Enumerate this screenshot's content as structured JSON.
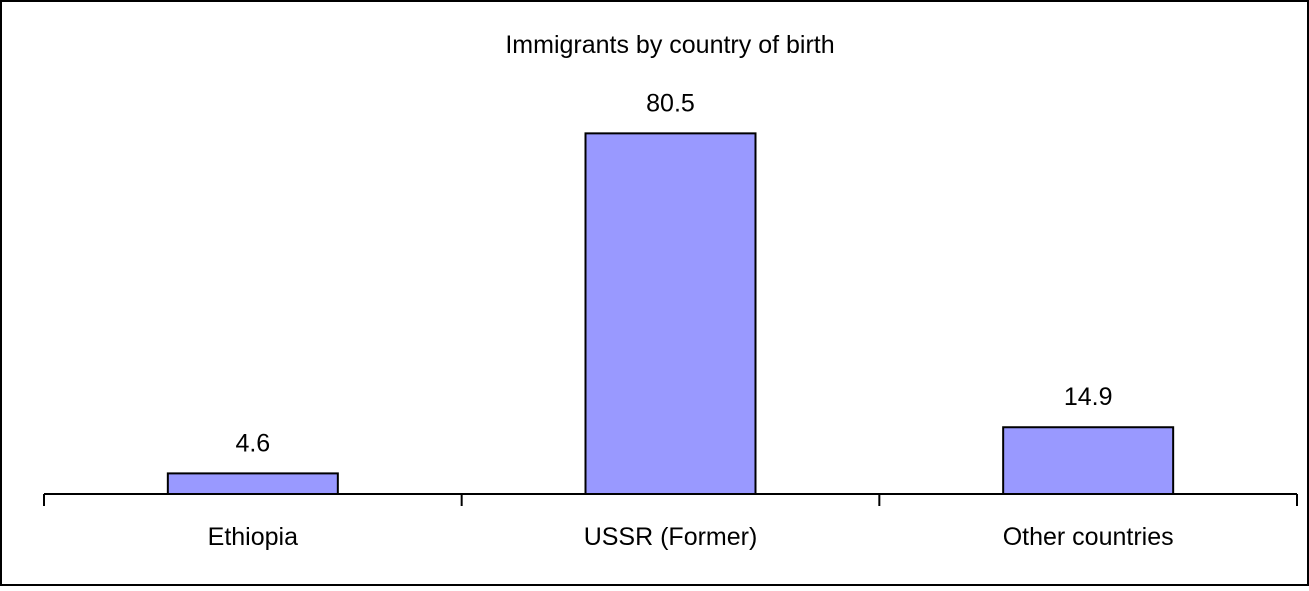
{
  "chart_data": {
    "type": "bar",
    "title": "Immigrants by country of birth",
    "xlabel": "",
    "ylabel": "",
    "categories": [
      "Ethiopia",
      "USSR (Former)",
      "Other countries"
    ],
    "values": [
      4.6,
      80.5,
      14.9
    ],
    "data_labels": [
      "4.6",
      "80.5",
      "14.9"
    ],
    "ylim": [
      0,
      100
    ],
    "grid": false,
    "legend": "none",
    "colors": {
      "bar_fill": "#9999ff",
      "bar_stroke": "#000000",
      "background": "#ffffff",
      "frame": "#000000"
    }
  }
}
